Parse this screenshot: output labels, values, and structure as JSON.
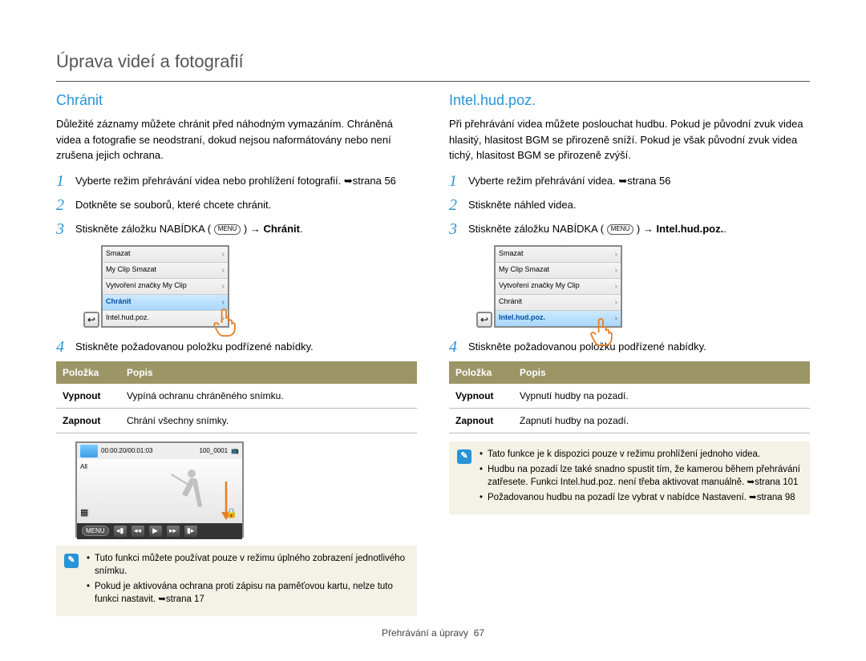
{
  "pageTitle": "Úprava videí a fotografií",
  "footer": {
    "label": "Přehrávání a úpravy",
    "page": "67"
  },
  "menuPill": "MENU",
  "menuItems": [
    "Smazat",
    "My Clip Smazat",
    "Vytvoření značky My Clip",
    "Chránit",
    "Intel.hud.poz."
  ],
  "left": {
    "heading": "Chránit",
    "intro": "Důležité záznamy můžete chránit před náhodným vymazáním. Chráněná videa a fotografie se neodstraní, dokud nejsou naformátovány nebo není zrušena jejich ochrana.",
    "steps": [
      {
        "text": "Vyberte režim přehrávání videa nebo prohlížení fotografií.",
        "ref": " ➥strana 56"
      },
      {
        "text": "Dotkněte se souborů, které chcete chránit."
      },
      {
        "prefix": "Stiskněte záložku NABÍDKA (",
        "suffix": ") → ",
        "bold": "Chránit",
        "tail": "."
      },
      {
        "text": "Stiskněte požadovanou položku podřízené nabídky."
      }
    ],
    "selectedMenuIndex": 3,
    "table": {
      "headers": [
        "Položka",
        "Popis"
      ],
      "rows": [
        [
          "Vypnout",
          "Vypíná ochranu chráněného snímku."
        ],
        [
          "Zapnout",
          "Chrání všechny snímky."
        ]
      ]
    },
    "player": {
      "time": "00:00:20/00:01:03",
      "file": "100_0001",
      "menu": "MENU",
      "all": "All"
    },
    "notes": [
      "Tuto funkci můžete používat pouze v režimu úplného zobrazení jednotlivého snímku.",
      "Pokud je aktivována ochrana proti zápisu na paměťovou kartu, nelze tuto funkci nastavit. ➥strana 17"
    ]
  },
  "right": {
    "heading": "Intel.hud.poz.",
    "intro": "Při přehrávání videa můžete poslouchat hudbu. Pokud je původní zvuk videa hlasitý, hlasitost BGM se přirozeně sníží. Pokud je však původní zvuk videa tichý, hlasitost BGM se přirozeně zvýší.",
    "steps": [
      {
        "text": "Vyberte režim přehrávání videa. ➥strana 56"
      },
      {
        "text": "Stiskněte náhled videa."
      },
      {
        "prefix": "Stiskněte záložku NABÍDKA (",
        "suffix": ") → ",
        "bold": "Intel.hud.poz.",
        "tail": "."
      },
      {
        "text": "Stiskněte požadovanou položku podřízené nabídky."
      }
    ],
    "selectedMenuIndex": 4,
    "table": {
      "headers": [
        "Položka",
        "Popis"
      ],
      "rows": [
        [
          "Vypnout",
          "Vypnutí hudby na pozadí."
        ],
        [
          "Zapnout",
          "Zapnutí hudby na pozadí."
        ]
      ]
    },
    "notes": [
      "Tato funkce je k dispozici pouze v režimu prohlížení jednoho videa.",
      "Hudbu na pozadí lze také snadno spustit tím, že kamerou během přehrávání zatřesete. Funkci Intel.hud.poz. není třeba aktivovat manuálně. ➥strana 101",
      "Požadovanou hudbu na pozadí lze vybrat v nabídce Nastavení. ➥strana 98"
    ]
  }
}
